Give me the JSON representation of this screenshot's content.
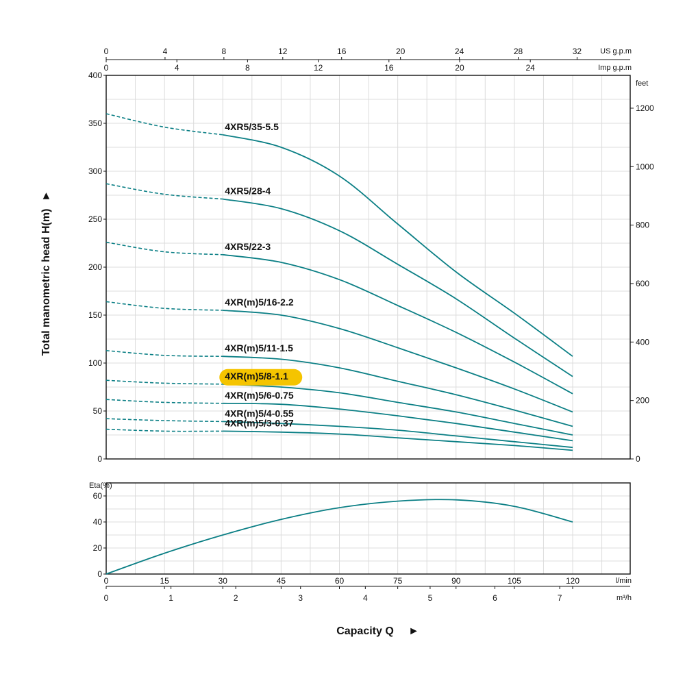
{
  "chart_data": [
    {
      "type": "line",
      "ylabel": "Total manometric head H(m)",
      "ylim": [
        0,
        400
      ],
      "yticks": [
        "0",
        "50",
        "100",
        "150",
        "200",
        "250",
        "300",
        "350",
        "400"
      ],
      "y_right_unit": "feet",
      "y_right_ticks": [
        "0",
        "200",
        "400",
        "600",
        "800",
        "1000",
        "1200"
      ],
      "top_axis_1_unit": "US g.p.m",
      "top_axis_1_ticks": [
        "0",
        "4",
        "8",
        "12",
        "16",
        "20",
        "24",
        "28",
        "32"
      ],
      "top_axis_2_unit": "Imp g.p.m",
      "top_axis_2_ticks": [
        "0",
        "4",
        "8",
        "12",
        "16",
        "20",
        "24"
      ],
      "x_unit": "l/min",
      "xlim": [
        0,
        120
      ],
      "series": [
        {
          "name": "4XR5/35-5.5",
          "highlight": false,
          "solid_from": 30,
          "x": [
            0,
            15,
            30,
            45,
            60,
            75,
            90,
            105,
            120
          ],
          "y": [
            360,
            346,
            338,
            325,
            295,
            245,
            195,
            152,
            107
          ]
        },
        {
          "name": "4XR5/28-4",
          "highlight": false,
          "solid_from": 30,
          "x": [
            0,
            15,
            30,
            45,
            60,
            75,
            90,
            105,
            120
          ],
          "y": [
            287,
            276,
            271,
            261,
            238,
            203,
            167,
            126,
            86
          ]
        },
        {
          "name": "4XR5/22-3",
          "highlight": false,
          "solid_from": 30,
          "x": [
            0,
            15,
            30,
            45,
            60,
            75,
            90,
            105,
            120
          ],
          "y": [
            226,
            216,
            213,
            205,
            187,
            160,
            132,
            101,
            68
          ]
        },
        {
          "name": "4XR(m)5/16-2.2",
          "highlight": false,
          "solid_from": 30,
          "x": [
            0,
            15,
            30,
            45,
            60,
            75,
            90,
            105,
            120
          ],
          "y": [
            164,
            157,
            155,
            150,
            136,
            116,
            95,
            73,
            49
          ]
        },
        {
          "name": "4XR(m)5/11-1.5",
          "highlight": false,
          "solid_from": 30,
          "x": [
            0,
            15,
            30,
            45,
            60,
            75,
            90,
            105,
            120
          ],
          "y": [
            113,
            108,
            107,
            104,
            95,
            81,
            67,
            51,
            34
          ]
        },
        {
          "name": "4XR(m)5/8-1.1",
          "highlight": true,
          "solid_from": 30,
          "x": [
            0,
            15,
            30,
            45,
            60,
            75,
            90,
            105,
            120
          ],
          "y": [
            82,
            79,
            78,
            75,
            69,
            59,
            49,
            37,
            25
          ]
        },
        {
          "name": "4XR(m)5/6-0.75",
          "highlight": false,
          "solid_from": 30,
          "x": [
            0,
            15,
            30,
            45,
            60,
            75,
            90,
            105,
            120
          ],
          "y": [
            62,
            59,
            58,
            57,
            52,
            45,
            37,
            28,
            19
          ]
        },
        {
          "name": "4XR(m)5/4-0.55",
          "highlight": false,
          "solid_from": 30,
          "x": [
            0,
            15,
            30,
            45,
            60,
            75,
            90,
            105,
            120
          ],
          "y": [
            42,
            40,
            39,
            37,
            34,
            30,
            24,
            18,
            12
          ]
        },
        {
          "name": "4XR(m)5/3-0.37",
          "highlight": false,
          "solid_from": 30,
          "x": [
            0,
            15,
            30,
            45,
            60,
            75,
            90,
            105,
            120
          ],
          "y": [
            31,
            29,
            29,
            28,
            26,
            22,
            18,
            14,
            9
          ]
        }
      ]
    },
    {
      "type": "line",
      "ylabel": "Eta(%)",
      "ylim": [
        0,
        70
      ],
      "yticks": [
        "0",
        "20",
        "40",
        "60"
      ],
      "xlabel": "Capacity Q",
      "x_unit_1": "l/min",
      "x_ticks_1": [
        "0",
        "15",
        "30",
        "45",
        "60",
        "75",
        "90",
        "105",
        "120"
      ],
      "x_unit_2": "m³/h",
      "x_ticks_2": [
        "0",
        "1",
        "2",
        "3",
        "4",
        "5",
        "6",
        "7"
      ],
      "xlim": [
        0,
        120
      ],
      "series": [
        {
          "x": [
            0,
            15,
            30,
            45,
            60,
            75,
            90,
            105,
            120
          ],
          "y": [
            0,
            16,
            30,
            42,
            51,
            56,
            57,
            52,
            40
          ]
        }
      ]
    }
  ],
  "colors": {
    "curve": "#0b7f85",
    "highlight": "#f5c400",
    "grid": "#dcdcdc",
    "text": "#111111"
  },
  "arrow_glyph": "►"
}
